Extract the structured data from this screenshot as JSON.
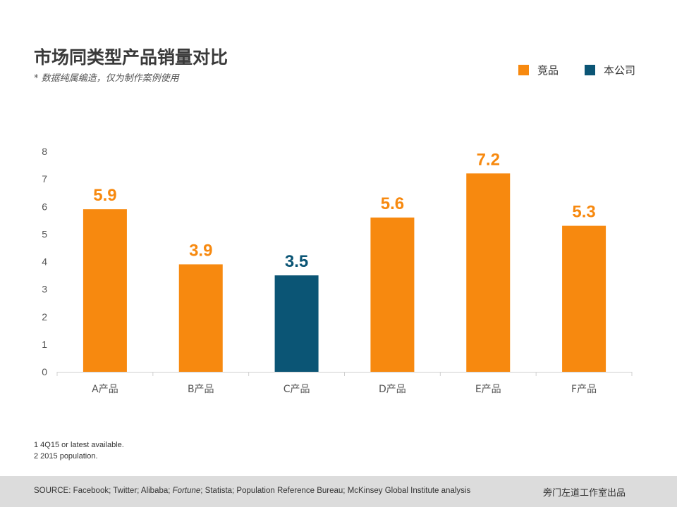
{
  "header": {
    "title": "市场同类型产品销量对比",
    "subtitle": "* 数据纯属编造，仅为制作案例使用"
  },
  "colors": {
    "competitor": "#F7890F",
    "company": "#0B5575"
  },
  "chart_data": {
    "type": "bar",
    "categories": [
      "A产品",
      "B产品",
      "C产品",
      "D产品",
      "E产品",
      "F产品"
    ],
    "values": [
      5.9,
      3.9,
      3.5,
      5.6,
      7.2,
      5.3
    ],
    "data_labels": [
      "5.9",
      "3.9",
      "3.5",
      "5.6",
      "7.2",
      "5.3"
    ],
    "series_of_bar": [
      "竞品",
      "竞品",
      "本公司",
      "竞品",
      "竞品",
      "竞品"
    ],
    "legend": [
      "竞品",
      "本公司"
    ],
    "legend_position": "top-right",
    "ylim": [
      0,
      8
    ],
    "yticks": [
      "0",
      "1",
      "2",
      "3",
      "4",
      "5",
      "6",
      "7",
      "8"
    ],
    "grid": false,
    "title": "",
    "xlabel": "",
    "ylabel": ""
  },
  "notes": [
    "1 4Q15 or latest available.",
    "2 2015 population."
  ],
  "footer": {
    "source_prefix": "SOURCE: Facebook; Twitter; Alibaba; ",
    "source_italic": "Fortune",
    "source_suffix": "; Statista; Population Reference Bureau; McKinsey Global Institute analysis",
    "brand": "旁门左道工作室出品"
  }
}
